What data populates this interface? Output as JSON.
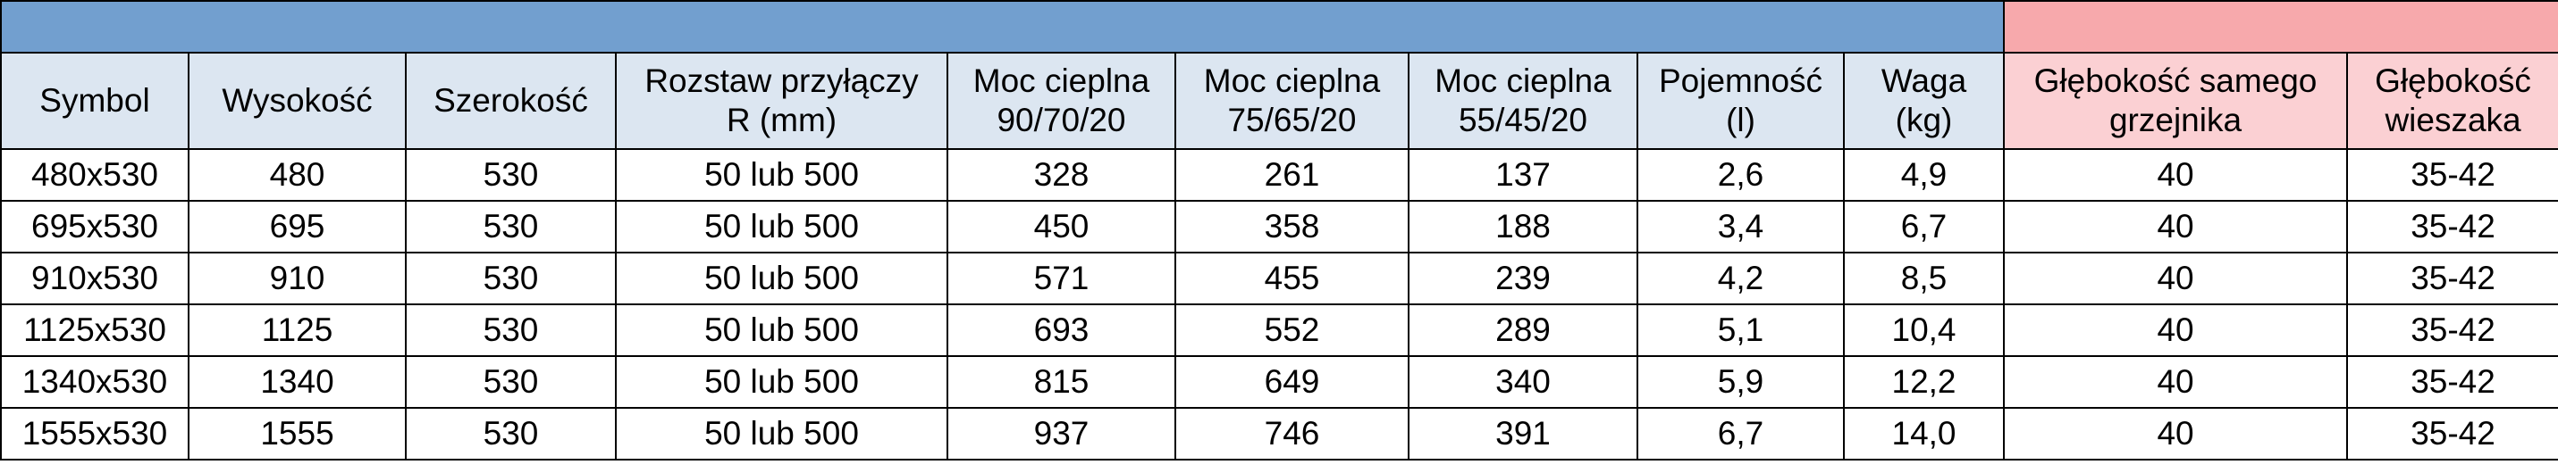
{
  "table": {
    "header": [
      [
        "Symbol"
      ],
      [
        "Wysokość"
      ],
      [
        "Szerokość"
      ],
      [
        "Rozstaw przyłączy",
        "R (mm)"
      ],
      [
        "Moc cieplna",
        "90/70/20"
      ],
      [
        "Moc cieplna",
        "75/65/20"
      ],
      [
        "Moc cieplna",
        "55/45/20"
      ],
      [
        "Pojemność",
        "(l)"
      ],
      [
        "Waga",
        "(kg)"
      ],
      [
        "Głębokość samego",
        "grzejnika"
      ],
      [
        "Głębokość",
        "wieszaka"
      ]
    ],
    "rows": [
      [
        "480x530",
        "480",
        "530",
        "50 lub 500",
        "328",
        "261",
        "137",
        "2,6",
        "4,9",
        "40",
        "35-42"
      ],
      [
        "695x530",
        "695",
        "530",
        "50 lub 500",
        "450",
        "358",
        "188",
        "3,4",
        "6,7",
        "40",
        "35-42"
      ],
      [
        "910x530",
        "910",
        "530",
        "50 lub 500",
        "571",
        "455",
        "239",
        "4,2",
        "8,5",
        "40",
        "35-42"
      ],
      [
        "1125x530",
        "1125",
        "530",
        "50 lub 500",
        "693",
        "552",
        "289",
        "5,1",
        "10,4",
        "40",
        "35-42"
      ],
      [
        "1340x530",
        "1340",
        "530",
        "50 lub 500",
        "815",
        "649",
        "340",
        "5,9",
        "12,2",
        "40",
        "35-42"
      ],
      [
        "1555x530",
        "1555",
        "530",
        "50 lub 500",
        "937",
        "746",
        "391",
        "6,7",
        "14,0",
        "40",
        "35-42"
      ]
    ]
  }
}
